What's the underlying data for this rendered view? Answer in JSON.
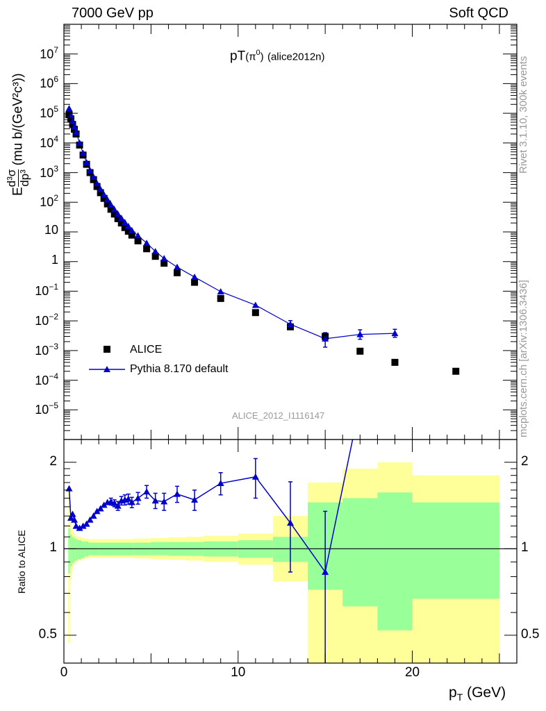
{
  "header": {
    "beam": "7000 GeV pp",
    "category": "Soft QCD"
  },
  "side_labels": {
    "rivet": "Rivet 3.1.10,  300k events",
    "source": "mcplots.cern.ch [arXiv:1306.3436]"
  },
  "colors": {
    "mc": "#0000cc",
    "data": "#000000",
    "band_outer": "#ffff99",
    "band_inner": "#99ff99",
    "label_gray": "#999999"
  },
  "chart_data": [
    {
      "type": "scatter",
      "title": "pT(π⁰) (alice2012n)",
      "title_parts": {
        "main": "pT",
        "paren_open": "(",
        "particle": "π",
        "superscript": "0",
        "paren_close": ")",
        "tag": "(alice2012n)"
      },
      "ylabel_parts": {
        "e": "E",
        "num": "d³σ",
        "den": "dp³",
        "unit": "(mu b/(GeV²c³))"
      },
      "analysis_id": "ALICE_2012_I1116147",
      "xlim": [
        0,
        26
      ],
      "ylim_log10": [
        -6,
        8
      ],
      "yticks": [
        {
          "exp": 7,
          "label": "10",
          "sup": "7"
        },
        {
          "exp": 6,
          "label": "10",
          "sup": "6"
        },
        {
          "exp": 5,
          "label": "10",
          "sup": "5"
        },
        {
          "exp": 4,
          "label": "10",
          "sup": "4"
        },
        {
          "exp": 3,
          "label": "10",
          "sup": "3"
        },
        {
          "exp": 2,
          "label": "10",
          "sup": "2"
        },
        {
          "exp": 1,
          "label": "10",
          "sup": ""
        },
        {
          "exp": 0,
          "label": "1",
          "sup": ""
        },
        {
          "exp": -1,
          "label": "10",
          "sup": "−1"
        },
        {
          "exp": -2,
          "label": "10",
          "sup": "−2"
        },
        {
          "exp": -3,
          "label": "10",
          "sup": "−3"
        },
        {
          "exp": -4,
          "label": "10",
          "sup": "−4"
        },
        {
          "exp": -5,
          "label": "10",
          "sup": "−5"
        }
      ],
      "legend": [
        {
          "name": "ALICE",
          "marker": "square"
        },
        {
          "name": "Pythia 8.170 default",
          "marker": "triangle"
        }
      ],
      "series": [
        {
          "name": "ALICE",
          "x": [
            0.3,
            0.4,
            0.5,
            0.6,
            0.7,
            0.9,
            1.1,
            1.3,
            1.5,
            1.7,
            1.9,
            2.1,
            2.3,
            2.5,
            2.7,
            2.9,
            3.1,
            3.3,
            3.5,
            3.7,
            3.9,
            4.25,
            4.75,
            5.25,
            5.75,
            6.5,
            7.5,
            9.0,
            11.0,
            13.0,
            15.0,
            17.0,
            19.0,
            22.5
          ],
          "y": [
            90000,
            65000,
            42000,
            29000,
            20000,
            8500,
            3900,
            1900,
            1000,
            580,
            340,
            210,
            135,
            88,
            58,
            40,
            28,
            20,
            14,
            10.5,
            7.8,
            5.0,
            2.7,
            1.5,
            0.88,
            0.42,
            0.2,
            0.057,
            0.019,
            0.0063,
            0.003,
            0.00095,
            0.0004,
            0.0002
          ]
        },
        {
          "name": "Pythia 8.170 default",
          "x": [
            0.3,
            0.4,
            0.5,
            0.6,
            0.7,
            0.9,
            1.1,
            1.3,
            1.5,
            1.7,
            1.9,
            2.1,
            2.3,
            2.5,
            2.7,
            2.9,
            3.1,
            3.3,
            3.5,
            3.7,
            3.9,
            4.25,
            4.75,
            5.25,
            5.75,
            6.5,
            7.5,
            9.0,
            11.0,
            13.0,
            15.0,
            17.0,
            19.0
          ],
          "y": [
            145000,
            85000,
            53000,
            35000,
            23000,
            10000,
            4500,
            2200,
            1180,
            710,
            430,
            275,
            180,
            122,
            82,
            57,
            40,
            29,
            21,
            15.5,
            11.3,
            7.5,
            4.2,
            2.2,
            1.27,
            0.65,
            0.3,
            0.097,
            0.034,
            0.0077,
            0.0025,
            0.0035,
            0.0038
          ],
          "yerr_up": [
            null,
            null,
            null,
            null,
            null,
            null,
            null,
            null,
            null,
            null,
            null,
            null,
            null,
            null,
            null,
            null,
            null,
            null,
            null,
            null,
            null,
            null,
            null,
            null,
            null,
            null,
            null,
            null,
            null,
            0.0025,
            0.0015,
            0.0015,
            0.0014
          ],
          "yerr_down": [
            null,
            null,
            null,
            null,
            null,
            null,
            null,
            null,
            null,
            null,
            null,
            null,
            null,
            null,
            null,
            null,
            null,
            null,
            null,
            null,
            null,
            null,
            null,
            null,
            null,
            null,
            null,
            null,
            null,
            0.002,
            0.0012,
            0.0011,
            0.001
          ]
        }
      ]
    },
    {
      "type": "line",
      "title": "",
      "xlabel": "p",
      "xlabel_sub": "T",
      "xlabel_unit": "(GeV)",
      "ylabel": "Ratio to ALICE",
      "xlim": [
        0,
        26
      ],
      "ylim_log": [
        0.4,
        2.4
      ],
      "xticks": [
        0,
        10,
        20
      ],
      "yticks": [
        {
          "value": 0.5,
          "label": "0.5"
        },
        {
          "value": 1,
          "label": "1"
        },
        {
          "value": 2,
          "label": "2"
        }
      ],
      "reference_line": 1,
      "bands": [
        {
          "xlo": 0.25,
          "xhi": 0.35,
          "in_lo": 0.82,
          "in_hi": 1.18,
          "out_lo": 0.47,
          "out_hi": 1.6
        },
        {
          "xlo": 0.35,
          "xhi": 0.45,
          "in_lo": 0.87,
          "in_hi": 1.12,
          "out_lo": 0.78,
          "out_hi": 1.25
        },
        {
          "xlo": 0.45,
          "xhi": 0.55,
          "in_lo": 0.89,
          "in_hi": 1.1,
          "out_lo": 0.85,
          "out_hi": 1.17
        },
        {
          "xlo": 0.55,
          "xhi": 0.65,
          "in_lo": 0.9,
          "in_hi": 1.09,
          "out_lo": 0.88,
          "out_hi": 1.13
        },
        {
          "xlo": 0.65,
          "xhi": 0.8,
          "in_lo": 0.91,
          "in_hi": 1.08,
          "out_lo": 0.9,
          "out_hi": 1.11
        },
        {
          "xlo": 0.8,
          "xhi": 1.0,
          "in_lo": 0.92,
          "in_hi": 1.07,
          "out_lo": 0.91,
          "out_hi": 1.1
        },
        {
          "xlo": 1.0,
          "xhi": 1.2,
          "in_lo": 0.93,
          "in_hi": 1.06,
          "out_lo": 0.92,
          "out_hi": 1.09
        },
        {
          "xlo": 1.2,
          "xhi": 1.4,
          "in_lo": 0.94,
          "in_hi": 1.06,
          "out_lo": 0.925,
          "out_hi": 1.085
        },
        {
          "xlo": 1.4,
          "xhi": 2.0,
          "in_lo": 0.95,
          "in_hi": 1.05,
          "out_lo": 0.93,
          "out_hi": 1.08
        },
        {
          "xlo": 2.0,
          "xhi": 4.0,
          "in_lo": 0.95,
          "in_hi": 1.05,
          "out_lo": 0.93,
          "out_hi": 1.08
        },
        {
          "xlo": 4.0,
          "xhi": 5.0,
          "in_lo": 0.95,
          "in_hi": 1.05,
          "out_lo": 0.925,
          "out_hi": 1.085
        },
        {
          "xlo": 5.0,
          "xhi": 6.0,
          "in_lo": 0.95,
          "in_hi": 1.055,
          "out_lo": 0.92,
          "out_hi": 1.09
        },
        {
          "xlo": 6.0,
          "xhi": 7.0,
          "in_lo": 0.945,
          "in_hi": 1.055,
          "out_lo": 0.915,
          "out_hi": 1.095
        },
        {
          "xlo": 7.0,
          "xhi": 8.0,
          "in_lo": 0.945,
          "in_hi": 1.055,
          "out_lo": 0.91,
          "out_hi": 1.1
        },
        {
          "xlo": 8.0,
          "xhi": 10.0,
          "in_lo": 0.94,
          "in_hi": 1.06,
          "out_lo": 0.9,
          "out_hi": 1.11
        },
        {
          "xlo": 10.0,
          "xhi": 12.0,
          "in_lo": 0.93,
          "in_hi": 1.07,
          "out_lo": 0.88,
          "out_hi": 1.13
        },
        {
          "xlo": 12.0,
          "xhi": 14.0,
          "in_lo": 0.9,
          "in_hi": 1.1,
          "out_lo": 0.77,
          "out_hi": 1.3
        },
        {
          "xlo": 14.0,
          "xhi": 16.0,
          "in_lo": 0.72,
          "in_hi": 1.45,
          "out_lo": 0.4,
          "out_hi": 1.7
        },
        {
          "xlo": 16.0,
          "xhi": 18.0,
          "in_lo": 0.63,
          "in_hi": 1.5,
          "out_lo": 0.4,
          "out_hi": 1.9
        },
        {
          "xlo": 18.0,
          "xhi": 20.0,
          "in_lo": 0.52,
          "in_hi": 1.57,
          "out_lo": 0.4,
          "out_hi": 2.0
        },
        {
          "xlo": 20.0,
          "xhi": 25.0,
          "in_lo": 0.67,
          "in_hi": 1.45,
          "out_lo": 0.4,
          "out_hi": 1.8
        }
      ],
      "series": [
        {
          "name": "Pythia 8.170 default / ALICE",
          "x": [
            0.3,
            0.4,
            0.5,
            0.6,
            0.7,
            0.9,
            1.1,
            1.3,
            1.5,
            1.7,
            1.9,
            2.1,
            2.3,
            2.5,
            2.7,
            2.9,
            3.1,
            3.3,
            3.5,
            3.7,
            3.9,
            4.25,
            4.75,
            5.25,
            5.75,
            6.5,
            7.5,
            9.0,
            11.0,
            13.0,
            15.0,
            17.0
          ],
          "y": [
            1.62,
            1.28,
            1.32,
            1.26,
            1.2,
            1.18,
            1.2,
            1.22,
            1.26,
            1.3,
            1.35,
            1.38,
            1.42,
            1.45,
            1.46,
            1.44,
            1.41,
            1.47,
            1.48,
            1.49,
            1.45,
            1.5,
            1.58,
            1.47,
            1.46,
            1.55,
            1.48,
            1.69,
            1.78,
            1.23,
            0.83,
            3.2
          ],
          "yerr_up": [
            null,
            null,
            null,
            null,
            null,
            null,
            null,
            null,
            null,
            null,
            null,
            null,
            null,
            null,
            0.04,
            0.04,
            0.05,
            0.05,
            0.06,
            0.06,
            0.06,
            0.07,
            0.08,
            0.09,
            0.1,
            0.1,
            0.12,
            0.15,
            0.28,
            0.48,
            0.52,
            null
          ],
          "yerr_down": [
            null,
            null,
            null,
            null,
            null,
            null,
            null,
            null,
            null,
            null,
            null,
            null,
            null,
            null,
            0.04,
            0.04,
            0.05,
            0.05,
            0.06,
            0.06,
            0.06,
            0.07,
            0.08,
            0.09,
            0.1,
            0.1,
            0.12,
            0.15,
            0.28,
            0.4,
            0.43,
            null
          ]
        }
      ]
    }
  ]
}
